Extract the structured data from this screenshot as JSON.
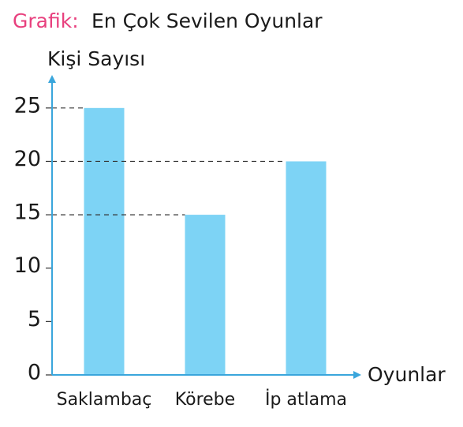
{
  "chart_data": {
    "type": "bar",
    "title_prefix": "Grafik:",
    "title": "En Çok Sevilen Oyunlar",
    "y_label": "Kişi Sayısı",
    "x_label": "Oyunlar",
    "categories": [
      "Saklambaç",
      "Körebe",
      "İp atlama"
    ],
    "values": [
      25,
      15,
      20
    ],
    "color": "#7dd3f5",
    "title_prefix_color": "#e8407e",
    "axis_color": "#3aa6dc",
    "ylim": [
      0,
      27.5
    ],
    "yticks": [
      0,
      5,
      10,
      15,
      20,
      25
    ],
    "reference_lines": true
  }
}
